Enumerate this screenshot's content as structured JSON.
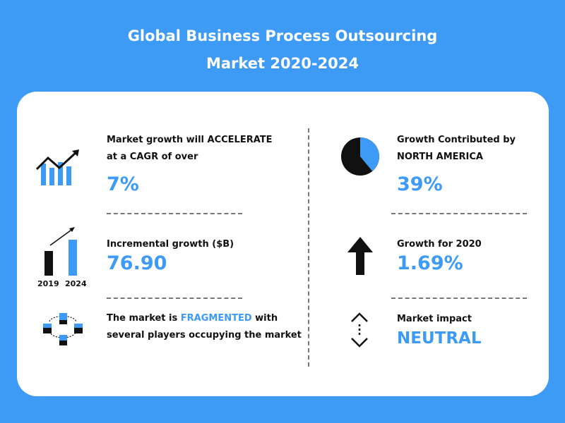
{
  "title": {
    "line1": "Global Business Process Outsourcing",
    "line2": "Market 2020-2024"
  },
  "left": {
    "cagr": {
      "label_line1": "Market growth will ACCELERATE",
      "label_line2": "at a CAGR of over",
      "value": "7%",
      "icon": "growth-chart-icon"
    },
    "incremental": {
      "label": "Incremental growth ($B)",
      "value": "76.90",
      "icon": "bar-comparison-icon",
      "year_start": "2019",
      "year_end": "2024"
    },
    "market": {
      "text_before": "The market is ",
      "text_highlight": "FRAGMENTED",
      "text_after": " with",
      "text_line2": "several players occupying the market",
      "icon": "network-stores-icon"
    }
  },
  "right": {
    "region": {
      "label_line1": "Growth Contributed by",
      "label_line2": "NORTH AMERICA",
      "value": "39%",
      "share": 0.39,
      "icon": "pie-chart-icon"
    },
    "growth2020": {
      "label": "Growth for 2020",
      "value": "1.69%",
      "icon": "arrow-up-icon"
    },
    "impact": {
      "label": "Market impact",
      "value": "NEUTRAL",
      "icon": "neutral-arrows-icon"
    }
  },
  "colors": {
    "background": "#3d9bf6",
    "accent": "#3d9bf6",
    "dark": "#111111",
    "card": "#ffffff"
  }
}
